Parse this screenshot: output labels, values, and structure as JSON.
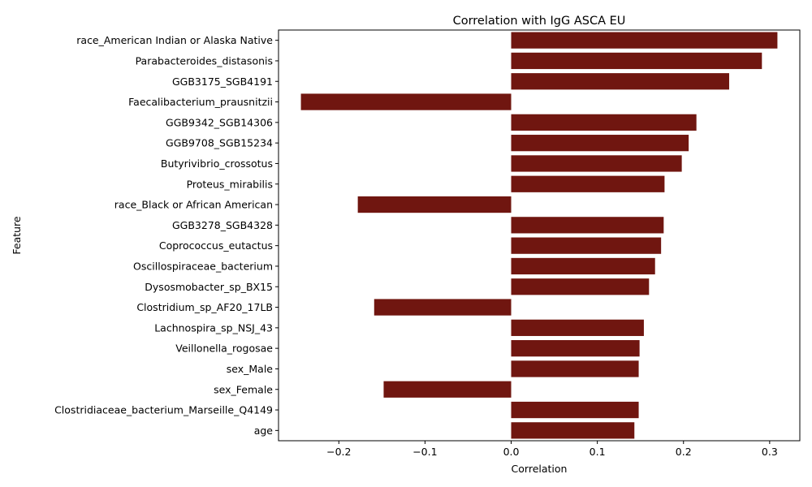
{
  "chart_data": {
    "type": "bar",
    "orientation": "horizontal",
    "title": "Correlation with IgG ASCA EU",
    "xlabel": "Correlation",
    "ylabel": "Feature",
    "xlim": [
      -0.27,
      0.335
    ],
    "xticks": [
      -0.2,
      -0.1,
      0.0,
      0.1,
      0.2,
      0.3
    ],
    "xtick_labels": [
      "−0.2",
      "−0.1",
      "0.0",
      "0.1",
      "0.2",
      "0.3"
    ],
    "grid": false,
    "legend": "none",
    "bar_color": "#701610",
    "categories": [
      "race_American Indian or Alaska Native",
      "Parabacteroides_distasonis",
      "GGB3175_SGB4191",
      "Faecalibacterium_prausnitzii",
      "GGB9342_SGB14306",
      "GGB9708_SGB15234",
      "Butyrivibrio_crossotus",
      "Proteus_mirabilis",
      "race_Black or African American",
      "GGB3278_SGB4328",
      "Coprococcus_eutactus",
      "Oscillospiraceae_bacterium",
      "Dysosmobacter_sp_BX15",
      "Clostridium_sp_AF20_17LB",
      "Lachnospira_sp_NSJ_43",
      "Veillonella_rogosae",
      "sex_Male",
      "sex_Female",
      "Clostridiaceae_bacterium_Marseille_Q4149",
      "age"
    ],
    "values": [
      0.309,
      0.291,
      0.253,
      -0.244,
      0.215,
      0.206,
      0.198,
      0.178,
      -0.178,
      0.177,
      0.174,
      0.167,
      0.16,
      -0.159,
      0.154,
      0.149,
      0.148,
      -0.148,
      0.148,
      0.143
    ]
  }
}
